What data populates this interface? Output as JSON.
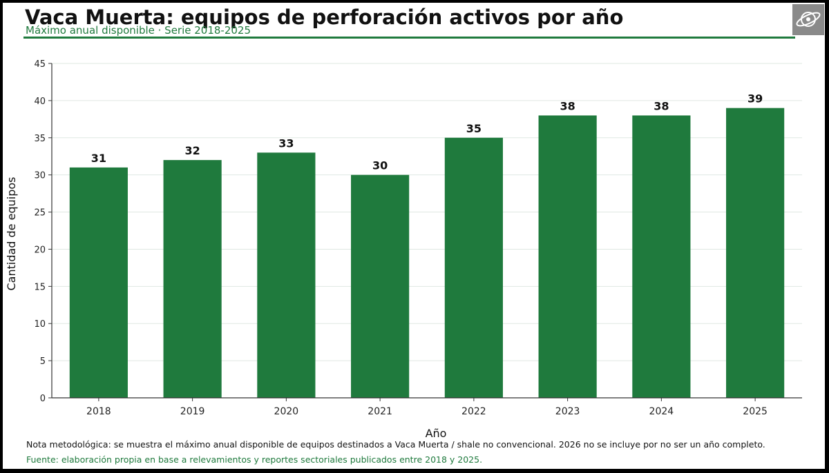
{
  "header": {
    "title": "Vaca Muerta: equipos de perforación activos por año",
    "subtitle": "Máximo anual disponible · Serie 2018-2025"
  },
  "chart_data": {
    "type": "bar",
    "title": "Vaca Muerta: equipos de perforación activos por año",
    "subtitle": "Máximo anual disponible · Serie 2018-2025",
    "categories": [
      "2018",
      "2019",
      "2020",
      "2021",
      "2022",
      "2023",
      "2024",
      "2025"
    ],
    "values": [
      31,
      32,
      33,
      30,
      35,
      38,
      38,
      39
    ],
    "value_labels": [
      "31",
      "32",
      "33",
      "30",
      "35",
      "38",
      "38",
      "39"
    ],
    "xlabel": "Año",
    "ylabel": "Cantidad de equipos",
    "ylim": [
      0,
      45
    ],
    "yticks": [
      0,
      5,
      10,
      15,
      20,
      25,
      30,
      35,
      40,
      45
    ],
    "ytick_labels": [
      "0",
      "5",
      "10",
      "15",
      "20",
      "25",
      "30",
      "35",
      "40",
      "45"
    ],
    "grid": true,
    "bar_color": "#1f7a3d"
  },
  "footer": {
    "note": "Nota metodológica: se muestra el máximo anual disponible de equipos destinados a Vaca Muerta / shale no convencional. 2026 no se incluye por no ser un año completo.",
    "source": "Fuente: elaboración propia en base a relevamientos y reportes sectoriales publicados entre 2018 y 2025."
  },
  "logo": {
    "icon": "globe-logo-icon",
    "color": "#8a8a8a"
  }
}
